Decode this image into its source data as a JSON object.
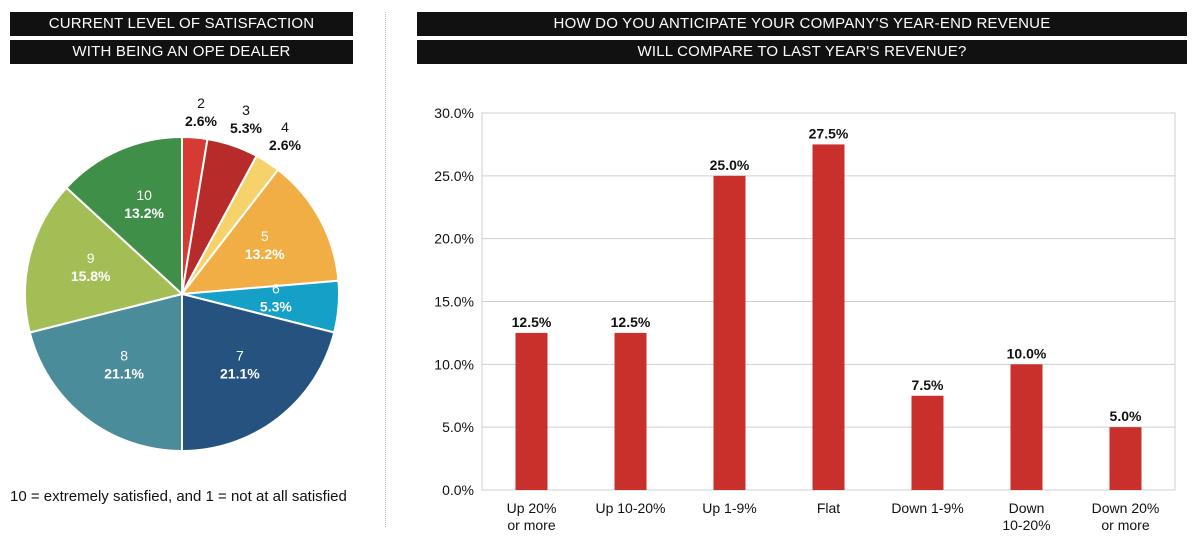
{
  "pie_chart": {
    "title_line1": "CURRENT LEVEL OF SATISFACTION",
    "title_line2": "WITH BEING AN OPE DEALER",
    "footnote": "10 = extremely satisfied, and 1 = not at all satisfied"
  },
  "bar_chart": {
    "title_line1": "HOW DO YOU ANTICIPATE YOUR COMPANY'S YEAR-END REVENUE",
    "title_line2": "WILL COMPARE TO LAST YEAR'S REVENUE?"
  },
  "chart_data": [
    {
      "type": "pie",
      "title": "CURRENT LEVEL OF SATISFACTION WITH BEING AN OPE DEALER",
      "slices": [
        {
          "label": "2",
          "value": 2.6,
          "value_label": "2.6%",
          "color": "#d63b33",
          "label_color": "#111111"
        },
        {
          "label": "3",
          "value": 5.3,
          "value_label": "5.3%",
          "color": "#b72b2b",
          "label_color": "#111111"
        },
        {
          "label": "4",
          "value": 2.6,
          "value_label": "2.6%",
          "color": "#f6d36a",
          "label_color": "#111111"
        },
        {
          "label": "5",
          "value": 13.2,
          "value_label": "13.2%",
          "color": "#f0ae45",
          "label_color": "#ffffff"
        },
        {
          "label": "6",
          "value": 5.3,
          "value_label": "5.3%",
          "color": "#14a0c7",
          "label_color": "#ffffff"
        },
        {
          "label": "7",
          "value": 21.1,
          "value_label": "21.1%",
          "color": "#25527f",
          "label_color": "#ffffff"
        },
        {
          "label": "8",
          "value": 21.1,
          "value_label": "21.1%",
          "color": "#4a8c99",
          "label_color": "#ffffff"
        },
        {
          "label": "9",
          "value": 15.8,
          "value_label": "15.8%",
          "color": "#a3be55",
          "label_color": "#ffffff"
        },
        {
          "label": "10",
          "value": 13.2,
          "value_label": "13.2%",
          "color": "#3f8f49",
          "label_color": "#ffffff"
        }
      ]
    },
    {
      "type": "bar",
      "title": "HOW DO YOU ANTICIPATE YOUR COMPANY'S YEAR-END REVENUE WILL COMPARE TO LAST YEAR'S REVENUE?",
      "categories": [
        [
          "Up 20%",
          "or more"
        ],
        [
          "Up 10-20%"
        ],
        [
          "Up 1-9%"
        ],
        [
          "Flat"
        ],
        [
          "Down 1-9%"
        ],
        [
          "Down",
          "10-20%"
        ],
        [
          "Down 20%",
          "or more"
        ]
      ],
      "values": [
        12.5,
        12.5,
        25.0,
        27.5,
        7.5,
        10.0,
        5.0
      ],
      "value_labels": [
        "12.5%",
        "12.5%",
        "25.0%",
        "27.5%",
        "7.5%",
        "10.0%",
        "5.0%"
      ],
      "yticks": [
        "0.0%",
        "5.0%",
        "10.0%",
        "15.0%",
        "20.0%",
        "25.0%",
        "30.0%"
      ],
      "ylim": [
        0,
        30
      ],
      "bar_color": "#c9302c",
      "grid": true
    }
  ]
}
